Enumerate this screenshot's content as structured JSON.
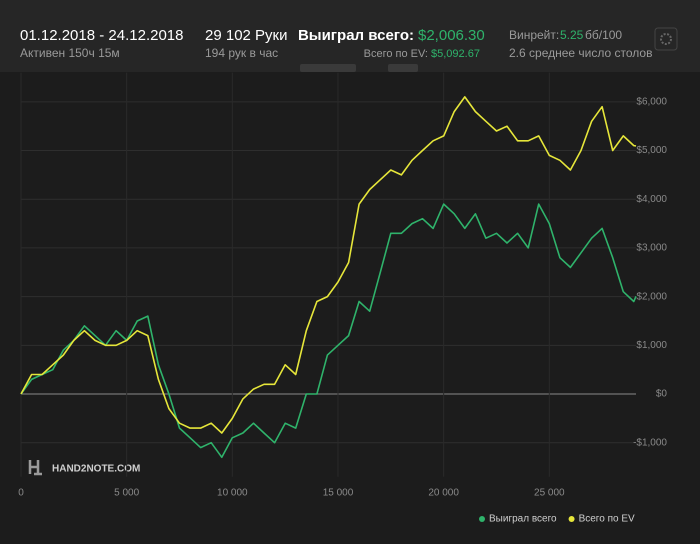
{
  "header": {
    "date_range": "01.12.2018 - 24.12.2018",
    "active": "Активен 150ч 15м",
    "hands": "29 102 Руки",
    "hands_per_hour": "194 рук в час",
    "won_label": "Выиграл всего:",
    "won_value": "$2,006.30",
    "ev_label": "Всего по EV:",
    "ev_value": "$5,092.67",
    "winrate_label": "Винрейт:",
    "winrate_value": "5.25",
    "winrate_unit": "бб/100",
    "tables": "2.6 среднее число столов"
  },
  "chart_data": {
    "type": "line",
    "watermark": "HAND2NOTE.COM",
    "x": [
      0,
      500,
      1000,
      1500,
      2000,
      2500,
      3000,
      3500,
      4000,
      4500,
      5000,
      5500,
      6000,
      6500,
      7000,
      7500,
      8000,
      8500,
      9000,
      9500,
      10000,
      10500,
      11000,
      11500,
      12000,
      12500,
      13000,
      13500,
      14000,
      14500,
      15000,
      15500,
      16000,
      16500,
      17000,
      17500,
      18000,
      18500,
      19000,
      19500,
      20000,
      20500,
      21000,
      21500,
      22000,
      22500,
      23000,
      23500,
      24000,
      24500,
      25000,
      25500,
      26000,
      26500,
      27000,
      27500,
      28000,
      28500,
      29000,
      29102
    ],
    "series": [
      {
        "name": "Выиграл всего",
        "color": "#2fb36b",
        "values": [
          0,
          300,
          400,
          500,
          900,
          1100,
          1400,
          1200,
          1000,
          1300,
          1100,
          1500,
          1600,
          600,
          0,
          -700,
          -900,
          -1100,
          -1000,
          -1300,
          -900,
          -800,
          -600,
          -800,
          -1000,
          -600,
          -700,
          0,
          0,
          800,
          1000,
          1200,
          1900,
          1700,
          2500,
          3300,
          3300,
          3500,
          3600,
          3400,
          3900,
          3700,
          3400,
          3700,
          3200,
          3300,
          3100,
          3300,
          3000,
          3900,
          3500,
          2800,
          2600,
          2900,
          3200,
          3400,
          2800,
          2100,
          1900,
          2006
        ]
      },
      {
        "name": "Всего по EV",
        "color": "#e6e63a",
        "values": [
          0,
          400,
          400,
          600,
          800,
          1100,
          1300,
          1100,
          1000,
          1000,
          1100,
          1300,
          1200,
          300,
          -300,
          -600,
          -700,
          -700,
          -600,
          -800,
          -500,
          -100,
          100,
          200,
          200,
          600,
          400,
          1300,
          1900,
          2000,
          2300,
          2700,
          3900,
          4200,
          4400,
          4600,
          4500,
          4800,
          5000,
          5200,
          5300,
          5800,
          6100,
          5800,
          5600,
          5400,
          5500,
          5200,
          5200,
          5300,
          4900,
          4800,
          4600,
          5000,
          5600,
          5900,
          5000,
          5300,
          5100,
          5093
        ]
      }
    ],
    "xlim": [
      0,
      29102
    ],
    "xticks": [
      0,
      {
        "value": 5000,
        "label": "5 000"
      },
      {
        "value": 10000,
        "label": "10 000"
      },
      {
        "value": 15000,
        "label": "15 000"
      },
      {
        "value": 20000,
        "label": "20 000"
      },
      {
        "value": 25000,
        "label": "25 000"
      }
    ],
    "ylim": [
      -1700,
      6600
    ],
    "yticks": [
      {
        "value": -1000,
        "label": "-$1,000"
      },
      {
        "value": 0,
        "label": "$0"
      },
      {
        "value": 1000,
        "label": "$1,000"
      },
      {
        "value": 2000,
        "label": "$2,000"
      },
      {
        "value": 3000,
        "label": "$3,000"
      },
      {
        "value": 4000,
        "label": "$4,000"
      },
      {
        "value": 5000,
        "label": "$5,000"
      },
      {
        "value": 6000,
        "label": "$6,000"
      }
    ],
    "grid": true
  }
}
